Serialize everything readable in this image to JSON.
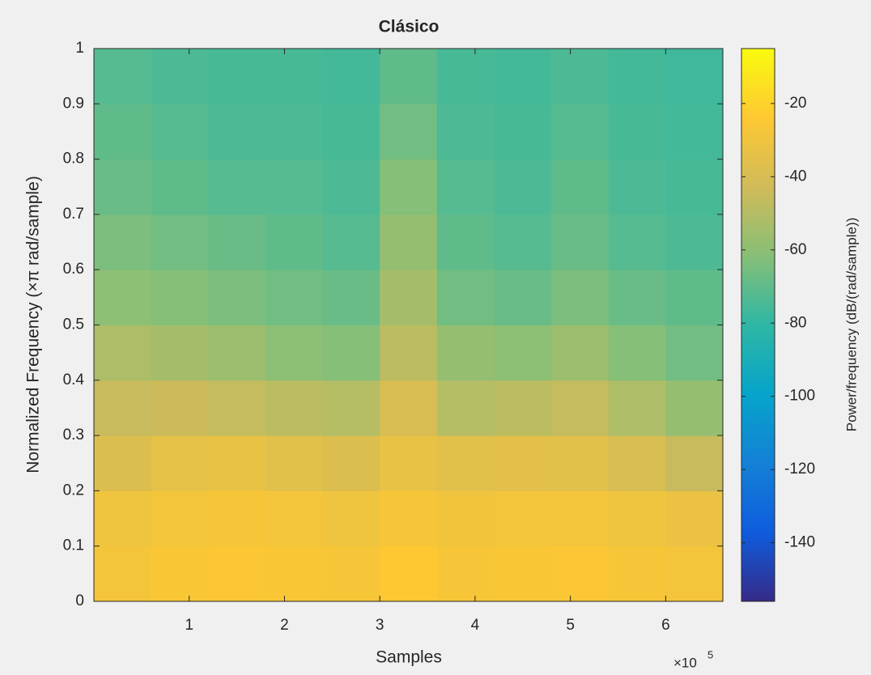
{
  "chart_data": {
    "type": "heatmap",
    "title": "Clásico",
    "x_label": "Samples",
    "y_label": "Normalized Frequency  (×π rad/sample)",
    "colorbar_label": "Power/frequency (dB/(rad/sample))",
    "x_multiplier": {
      "base": "×10",
      "exponent": "5"
    },
    "x_edges": [
      0,
      0.6,
      1.2,
      1.8,
      2.4,
      3.0,
      3.6,
      4.2,
      4.8,
      5.4,
      6.0,
      6.6
    ],
    "y_edges": [
      0,
      0.1,
      0.2,
      0.3,
      0.4,
      0.5,
      0.6,
      0.7,
      0.8,
      0.9,
      1
    ],
    "z": [
      [
        -28,
        -26,
        -25,
        -26,
        -27,
        -24,
        -27,
        -26,
        -25,
        -27,
        -28
      ],
      [
        -30,
        -28,
        -27,
        -28,
        -30,
        -27,
        -29,
        -28,
        -28,
        -30,
        -32
      ],
      [
        -38,
        -34,
        -33,
        -36,
        -38,
        -33,
        -36,
        -35,
        -36,
        -40,
        -45
      ],
      [
        -45,
        -44,
        -46,
        -48,
        -50,
        -40,
        -50,
        -48,
        -46,
        -52,
        -58
      ],
      [
        -52,
        -54,
        -56,
        -60,
        -62,
        -48,
        -58,
        -60,
        -56,
        -62,
        -66
      ],
      [
        -60,
        -62,
        -64,
        -66,
        -68,
        -54,
        -66,
        -68,
        -64,
        -68,
        -70
      ],
      [
        -64,
        -66,
        -68,
        -70,
        -72,
        -58,
        -70,
        -72,
        -68,
        -72,
        -74
      ],
      [
        -68,
        -70,
        -72,
        -72,
        -74,
        -62,
        -72,
        -74,
        -70,
        -74,
        -75
      ],
      [
        -70,
        -72,
        -74,
        -74,
        -75,
        -66,
        -74,
        -75,
        -72,
        -75,
        -76
      ],
      [
        -72,
        -74,
        -75,
        -75,
        -76,
        -70,
        -75,
        -76,
        -74,
        -76,
        -77
      ]
    ],
    "xlim": [
      0,
      6.6
    ],
    "ylim": [
      0,
      1
    ],
    "xticks": [
      1,
      2,
      3,
      4,
      5,
      6
    ],
    "yticks": [
      0,
      0.1,
      0.2,
      0.3,
      0.4,
      0.5,
      0.6,
      0.7,
      0.8,
      0.9,
      1
    ],
    "clim": [
      -156,
      -5
    ],
    "cticks": [
      -140,
      -120,
      -100,
      -80,
      -60,
      -40,
      -20
    ],
    "colormap": [
      "#352a87",
      "#0f5cdd",
      "#1481d6",
      "#06a4ca",
      "#2eb7a4",
      "#87bf77",
      "#d1bb59",
      "#fec832",
      "#f9fb0e"
    ]
  }
}
